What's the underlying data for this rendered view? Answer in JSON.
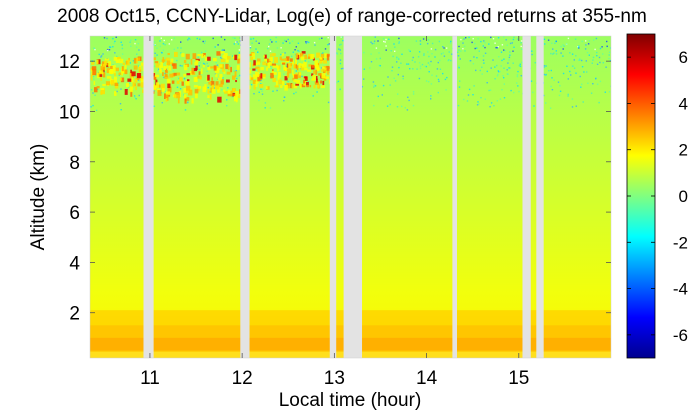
{
  "chart_data": {
    "type": "heatmap",
    "title": "2008 Oct15, CCNY-Lidar, Log(e) of range-corrected returns at 355-nm",
    "xlabel": "Local time (hour)",
    "ylabel": "Altitude (km)",
    "xlim": [
      10.35,
      16.0
    ],
    "ylim": [
      0.2,
      13.0
    ],
    "xticks": [
      11,
      12,
      13,
      14,
      15
    ],
    "yticks": [
      2,
      4,
      6,
      8,
      10,
      12
    ],
    "colorbar": {
      "range": [
        -7,
        7
      ],
      "ticks": [
        -6,
        -4,
        -2,
        0,
        2,
        4,
        6
      ],
      "colormap": "jet",
      "stops": [
        "#00008f",
        "#0000ff",
        "#00ffff",
        "#80ff80",
        "#ffff00",
        "#ff8000",
        "#ff0000",
        "#800000"
      ]
    },
    "data_gaps_hour": [
      [
        10.93,
        11.04
      ],
      [
        11.98,
        12.08
      ],
      [
        12.95,
        13.02
      ],
      [
        13.1,
        13.3
      ],
      [
        14.28,
        14.33
      ],
      [
        15.04,
        15.13
      ],
      [
        15.19,
        15.27
      ]
    ],
    "profile": [
      {
        "altitude_km": 0.2,
        "value": 2.9
      },
      {
        "altitude_km": 0.5,
        "value": 4.0
      },
      {
        "altitude_km": 0.9,
        "value": 4.2
      },
      {
        "altitude_km": 1.3,
        "value": 3.8
      },
      {
        "altitude_km": 1.7,
        "value": 3.5
      },
      {
        "altitude_km": 2.2,
        "value": 3.0
      },
      {
        "altitude_km": 4.0,
        "value": 2.7
      },
      {
        "altitude_km": 7.0,
        "value": 2.3
      },
      {
        "altitude_km": 10.0,
        "value": 1.9
      },
      {
        "altitude_km": 13.0,
        "value": 1.4
      }
    ],
    "cirrus_layer": {
      "altitude_km": [
        10.4,
        12.4
      ],
      "time_hour": [
        10.35,
        12.95
      ],
      "peak_value": 5.0
    }
  }
}
